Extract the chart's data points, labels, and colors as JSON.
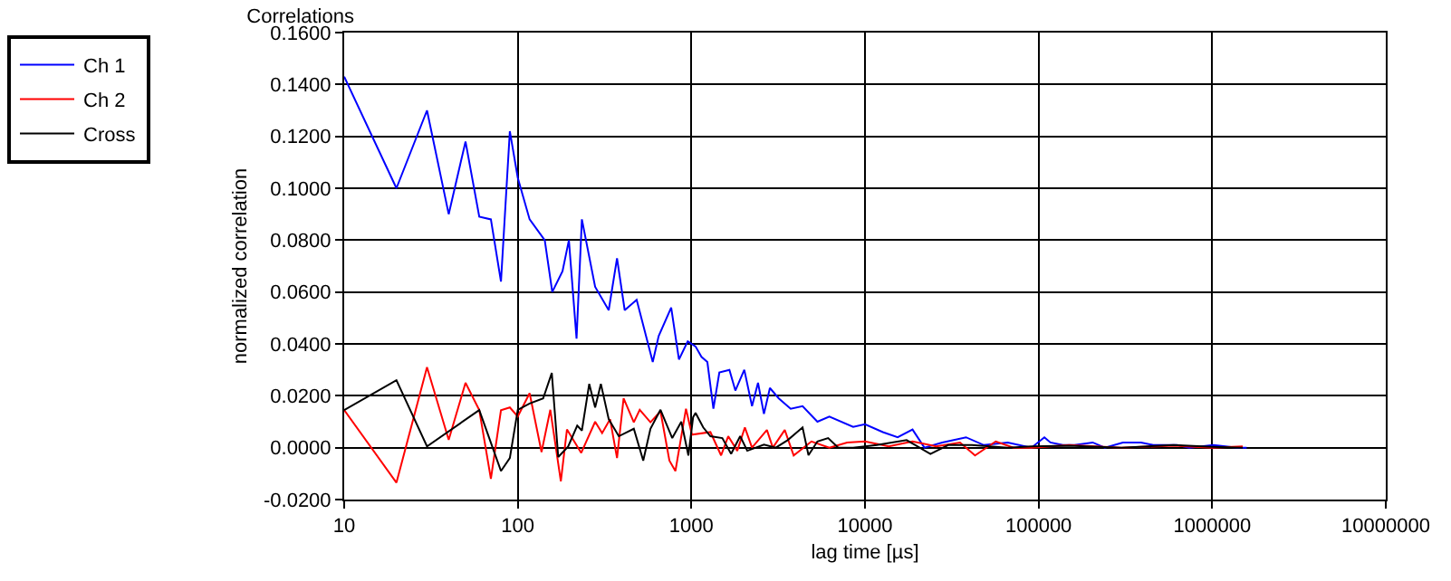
{
  "chart_data": {
    "type": "line",
    "title": "Correlations",
    "xlabel": "lag time [µs]",
    "ylabel": "normalized correlation",
    "log": "x",
    "grid": true,
    "legend": "top left",
    "marker": "none",
    "line_style": "solid",
    "xlim": [
      10,
      10000000
    ],
    "xticks": [
      10,
      100,
      1000,
      10000,
      100000,
      1000000,
      10000000
    ],
    "ylim": [
      -0.02,
      0.16
    ],
    "yticks": [
      {
        "value": -0.02,
        "label": "-0.0200"
      },
      {
        "value": 0,
        "label": "0.0000"
      },
      {
        "value": 0.02,
        "label": "0.0200"
      },
      {
        "value": 0.04,
        "label": "0.0400"
      },
      {
        "value": 0.06,
        "label": "0.0600"
      },
      {
        "value": 0.08,
        "label": "0.0800"
      },
      {
        "value": 0.1,
        "label": "0.1000"
      },
      {
        "value": 0.12,
        "label": "0.1200"
      },
      {
        "value": 0.14,
        "label": "0.1400"
      },
      {
        "value": 0.16,
        "label": "0.1600"
      }
    ],
    "series": [
      {
        "name": "Ch 1",
        "color": "#0000ff",
        "x": [
          10,
          20,
          30,
          40,
          50,
          60,
          70,
          80,
          90,
          100,
          117,
          143,
          158,
          181,
          197,
          218,
          234,
          279,
          334,
          373,
          413,
          484,
          599,
          648,
          765,
          848,
          953,
          1057,
          1143,
          1236,
          1339,
          1449,
          1656,
          1792,
          2017,
          2235,
          2420,
          2618,
          2833,
          3187,
          3733,
          4370,
          5321,
          6233,
          8547,
          10000,
          12680,
          15430,
          18790,
          21990,
          27860,
          38190,
          48390,
          66420,
          90930,
          108000,
          117000,
          138000,
          161000,
          205000,
          241000,
          306000,
          389000,
          457000,
          629000,
          738000,
          1016000,
          1400000,
          1580000
        ],
        "values": [
          0.143,
          0.1,
          0.13,
          0.09,
          0.118,
          0.089,
          0.088,
          0.064,
          0.122,
          0.104,
          0.088,
          0.08,
          0.06,
          0.068,
          0.08,
          0.042,
          0.088,
          0.062,
          0.053,
          0.073,
          0.053,
          0.057,
          0.033,
          0.043,
          0.054,
          0.034,
          0.041,
          0.039,
          0.035,
          0.033,
          0.015,
          0.029,
          0.03,
          0.022,
          0.03,
          0.016,
          0.025,
          0.013,
          0.023,
          0.019,
          0.015,
          0.016,
          0.01,
          0.012,
          0.008,
          0.009,
          0.006,
          0.004,
          0.007,
          0.0,
          0.002,
          0.004,
          0.001,
          0.002,
          0.0,
          0.004,
          0.002,
          0.001,
          0.001,
          0.002,
          0.0,
          0.002,
          0.002,
          0.001,
          0.001,
          0.0,
          0.001,
          0.0,
          0.0
        ]
      },
      {
        "name": "Ch 2",
        "color": "#ff0000",
        "x": [
          10,
          20,
          30,
          40,
          50,
          60,
          70,
          80,
          90,
          100,
          117,
          137,
          154,
          177,
          192,
          232,
          279,
          306,
          340,
          373,
          407,
          466,
          504,
          581,
          664,
          747,
          809,
          931,
          1007,
          1287,
          1483,
          1630,
          1838,
          2033,
          2235,
          2723,
          2946,
          3451,
          3883,
          4918,
          6233,
          7895,
          10000,
          13710,
          18790,
          25740,
          35290,
          43030,
          56650,
          71800,
          90930,
          150000,
          300000,
          600000,
          1000000,
          1500000
        ],
        "values": [
          0.0145,
          -0.0135,
          0.031,
          0.003,
          0.025,
          0.0145,
          -0.012,
          0.0144,
          0.0155,
          0.012,
          0.021,
          -0.0017,
          0.0146,
          -0.013,
          0.007,
          -0.002,
          0.01,
          0.0056,
          0.011,
          -0.004,
          0.019,
          0.0098,
          0.0146,
          0.0098,
          0.014,
          -0.005,
          -0.009,
          0.015,
          0.005,
          0.006,
          -0.003,
          0.0044,
          -0.0012,
          0.0078,
          0.0,
          0.0068,
          0.0,
          0.0068,
          -0.003,
          0.0024,
          0.0,
          0.002,
          0.0024,
          0.0005,
          0.0024,
          0.0005,
          0.002,
          -0.003,
          0.0024,
          0.0,
          0.0,
          0.001,
          0.0,
          0.0008,
          0.0,
          0.0005
        ]
      },
      {
        "name": "Cross",
        "color": "#000000",
        "x": [
          10,
          20,
          30,
          60,
          80,
          90,
          100,
          117,
          140,
          157,
          171,
          195,
          220,
          234,
          258,
          279,
          301,
          334,
          382,
          466,
          528,
          581,
          664,
          776,
          875,
          961,
          1023,
          1057,
          1170,
          1287,
          1507,
          1694,
          1910,
          2099,
          2618,
          3064,
          3587,
          4370,
          4727,
          5321,
          6134,
          7018,
          8547,
          11700,
          17370,
          23830,
          30130,
          41320,
          66420,
          90930,
          150000,
          300000,
          600000,
          1000000,
          1500000
        ],
        "values": [
          0.0145,
          0.026,
          0.0005,
          0.0145,
          -0.009,
          -0.004,
          0.0146,
          0.017,
          0.019,
          0.0288,
          -0.0036,
          0.0004,
          0.0085,
          0.0066,
          0.0246,
          0.0155,
          0.0246,
          0.011,
          0.0044,
          0.0073,
          -0.005,
          0.0073,
          0.0146,
          0.0037,
          0.01,
          -0.003,
          0.0117,
          0.0134,
          0.0078,
          0.0044,
          0.0037,
          -0.0024,
          0.0044,
          -0.0012,
          0.0012,
          0.0,
          0.0029,
          0.0078,
          -0.0029,
          0.0024,
          0.0037,
          0.0,
          0.0,
          0.001,
          0.0029,
          -0.0024,
          0.001,
          0.001,
          0.0,
          0.0005,
          0.0008,
          0.0,
          0.001,
          0.0003,
          0.0
        ]
      }
    ]
  }
}
